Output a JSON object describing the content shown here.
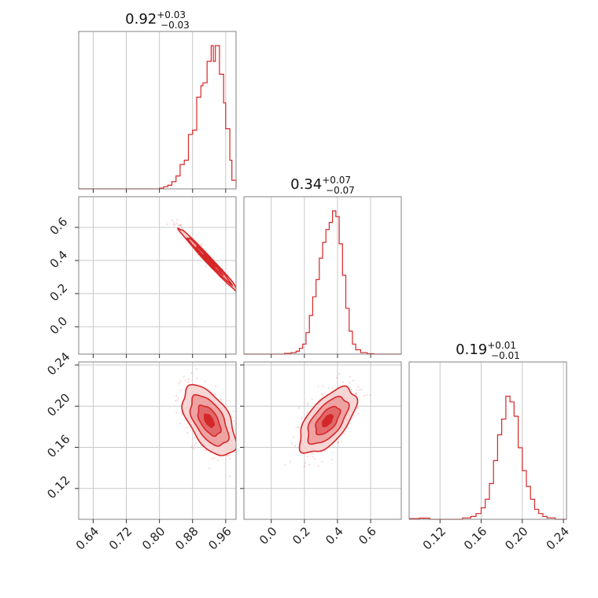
{
  "chart_data": {
    "type": "corner",
    "color": "#d62728",
    "titles": [
      {
        "median": "0.92",
        "plus": "+0.03",
        "minus": "−0.03"
      },
      {
        "median": "0.34",
        "plus": "+0.07",
        "minus": "−0.07"
      },
      {
        "median": "0.19",
        "plus": "+0.01",
        "minus": "−0.01"
      }
    ],
    "parameters": [
      {
        "range": [
          0.605,
          0.985
        ],
        "ticks": [
          0.64,
          0.72,
          0.8,
          0.88,
          0.96
        ],
        "tick_labels": [
          "0.64",
          "0.72",
          "0.80",
          "0.88",
          "0.96"
        ],
        "hist_bins": [
          [
            0.605,
            0
          ],
          [
            0.8,
            0.005
          ],
          [
            0.81,
            0.015
          ],
          [
            0.82,
            0.025
          ],
          [
            0.83,
            0.05
          ],
          [
            0.84,
            0.09
          ],
          [
            0.85,
            0.17
          ],
          [
            0.86,
            0.2
          ],
          [
            0.87,
            0.38
          ],
          [
            0.88,
            0.41
          ],
          [
            0.89,
            0.64
          ],
          [
            0.9,
            0.72
          ],
          [
            0.905,
            0.74
          ],
          [
            0.915,
            0.89
          ],
          [
            0.925,
            1.0
          ],
          [
            0.93,
            0.89
          ],
          [
            0.935,
            1.0
          ],
          [
            0.945,
            0.8
          ],
          [
            0.955,
            0.6
          ],
          [
            0.96,
            0.42
          ],
          [
            0.97,
            0.2
          ],
          [
            0.975,
            0.06
          ],
          [
            0.985,
            0.01
          ]
        ]
      },
      {
        "range": [
          -0.165,
          0.785
        ],
        "ticks": [
          0.0,
          0.2,
          0.4,
          0.6
        ],
        "tick_labels": [
          "0.0",
          "0.2",
          "0.4",
          "0.6"
        ],
        "hist_bins": [
          [
            -0.165,
            0
          ],
          [
            0.08,
            0.005
          ],
          [
            0.12,
            0.01
          ],
          [
            0.15,
            0.02
          ],
          [
            0.17,
            0.04
          ],
          [
            0.19,
            0.07
          ],
          [
            0.21,
            0.15
          ],
          [
            0.23,
            0.27
          ],
          [
            0.25,
            0.4
          ],
          [
            0.27,
            0.52
          ],
          [
            0.29,
            0.67
          ],
          [
            0.31,
            0.78
          ],
          [
            0.33,
            0.87
          ],
          [
            0.35,
            0.92
          ],
          [
            0.37,
            1.0
          ],
          [
            0.39,
            0.96
          ],
          [
            0.41,
            0.77
          ],
          [
            0.43,
            0.55
          ],
          [
            0.45,
            0.32
          ],
          [
            0.47,
            0.16
          ],
          [
            0.49,
            0.07
          ],
          [
            0.51,
            0.03
          ],
          [
            0.54,
            0.01
          ],
          [
            0.58,
            0.003
          ],
          [
            0.62,
            0
          ],
          [
            0.785,
            0
          ]
        ]
      },
      {
        "range": [
          0.09,
          0.243
        ],
        "ticks": [
          0.12,
          0.16,
          0.2,
          0.24
        ],
        "tick_labels": [
          "0.12",
          "0.16",
          "0.20",
          "0.24"
        ],
        "hist_bins": [
          [
            0.09,
            0.005
          ],
          [
            0.1,
            0.008
          ],
          [
            0.11,
            0
          ],
          [
            0.142,
            0.01
          ],
          [
            0.15,
            0.02
          ],
          [
            0.155,
            0.04
          ],
          [
            0.16,
            0.08
          ],
          [
            0.164,
            0.14
          ],
          [
            0.168,
            0.25
          ],
          [
            0.172,
            0.41
          ],
          [
            0.176,
            0.59
          ],
          [
            0.18,
            0.7
          ],
          [
            0.184,
            0.86
          ],
          [
            0.188,
            0.82
          ],
          [
            0.192,
            0.72
          ],
          [
            0.196,
            0.5
          ],
          [
            0.2,
            0.34
          ],
          [
            0.204,
            0.23
          ],
          [
            0.208,
            0.14
          ],
          [
            0.212,
            0.07
          ],
          [
            0.216,
            0.04
          ],
          [
            0.22,
            0.02
          ],
          [
            0.224,
            0.01
          ],
          [
            0.232,
            0
          ],
          [
            0.243,
            0
          ]
        ]
      }
    ],
    "contours": {
      "p1_p0": {
        "mean": [
          0.92,
          0.4
        ],
        "sd": [
          0.03,
          0.08
        ],
        "corr": -0.99
      },
      "p2_p0": {
        "mean": [
          0.92,
          0.186
        ],
        "sd": [
          0.026,
          0.014
        ],
        "corr": -0.55
      },
      "p2_p1": {
        "mean": [
          0.34,
          0.186
        ],
        "sd": [
          0.07,
          0.013
        ],
        "corr": 0.6
      }
    },
    "grid": true
  }
}
